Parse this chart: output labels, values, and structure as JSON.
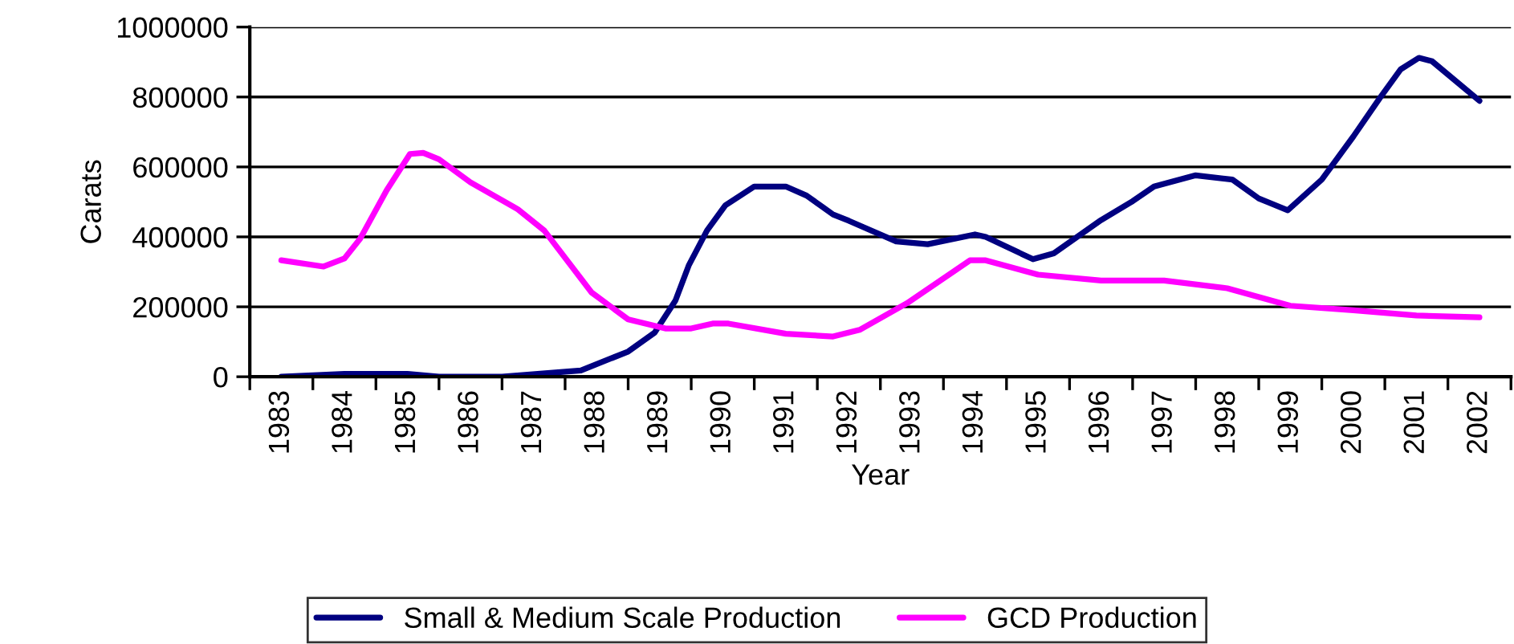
{
  "chart_data": {
    "type": "line",
    "xlabel": "Year",
    "ylabel": "Carats",
    "xlim": [
      1982.5,
      2002.5
    ],
    "xticks": [
      1983,
      1984,
      1985,
      1986,
      1987,
      1988,
      1989,
      1990,
      1991,
      1992,
      1993,
      1994,
      1995,
      1996,
      1997,
      1998,
      1999,
      2000,
      2001,
      2002
    ],
    "ylim": [
      0,
      1000000
    ],
    "yticks": [
      0,
      200000,
      400000,
      600000,
      800000,
      1000000
    ],
    "grid": "y",
    "legend": "bottom",
    "marker": "none",
    "line_style": "solid",
    "series": [
      {
        "name": "Small & Medium Scale Production",
        "color": "#000080",
        "x": [
          1983.0,
          1984.0,
          1985.0,
          1985.5,
          1986.5,
          1987.75,
          1988.5,
          1988.92,
          1989.25,
          1989.46,
          1989.75,
          1990.04,
          1990.5,
          1991.0,
          1991.33,
          1991.75,
          1992.0,
          1992.75,
          1993.25,
          1994.0,
          1994.17,
          1994.92,
          1995.25,
          1996.0,
          1996.5,
          1996.84,
          1997.5,
          1998.08,
          1998.5,
          1998.96,
          1999.5,
          2000.0,
          2000.42,
          2000.75,
          2001.04,
          2001.25,
          2002.0
        ],
        "values": [
          0,
          8000,
          8000,
          0,
          0,
          18000,
          72000,
          126000,
          218000,
          318000,
          418000,
          490000,
          544000,
          544000,
          518000,
          464000,
          446000,
          387000,
          379000,
          407000,
          400000,
          336000,
          353000,
          448000,
          502000,
          544000,
          576000,
          564000,
          510000,
          476000,
          564000,
          687000,
          797000,
          879000,
          912000,
          902000,
          789000
        ]
      },
      {
        "name": "GCD Production",
        "color": "#ff00ff",
        "x": [
          1983.0,
          1983.67,
          1984.0,
          1984.25,
          1984.67,
          1985.04,
          1985.25,
          1985.5,
          1986.0,
          1986.75,
          1987.17,
          1987.92,
          1988.5,
          1989.09,
          1989.5,
          1989.84,
          1990.09,
          1991.0,
          1991.75,
          1992.17,
          1992.92,
          1993.92,
          1994.17,
          1995.0,
          1996.0,
          1997.0,
          1998.0,
          1999.0,
          2000.0,
          2001.0,
          2002.0
        ],
        "values": [
          333000,
          315000,
          338000,
          395000,
          533000,
          637000,
          640000,
          622000,
          556000,
          479000,
          418000,
          241000,
          164000,
          138000,
          138000,
          152000,
          152000,
          123000,
          115000,
          134000,
          210000,
          333000,
          333000,
          292000,
          275000,
          275000,
          253000,
          203000,
          190000,
          175000,
          170000
        ]
      }
    ]
  }
}
